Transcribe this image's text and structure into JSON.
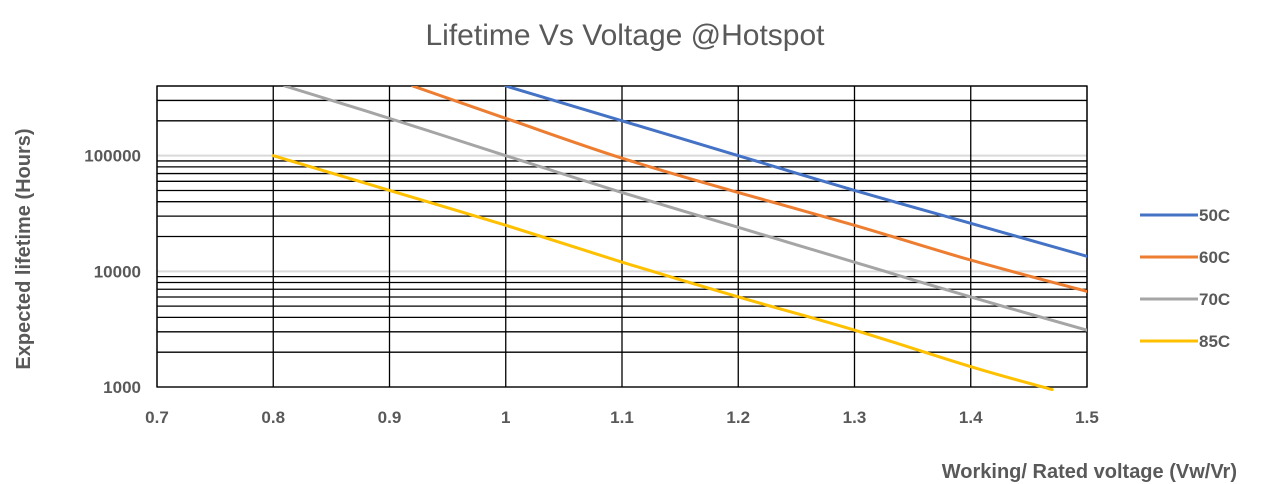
{
  "chart_data": {
    "type": "line",
    "title": "Lifetime Vs  Voltage @Hotspot",
    "xlabel": "Working/ Rated voltage (Vw/Vr)",
    "ylabel": "Expected lifetime (Hours)",
    "xlim": [
      0.7,
      1.5
    ],
    "ylim": [
      1000,
      400000
    ],
    "yscale": "log",
    "x_ticks": [
      0.7,
      0.8,
      0.9,
      1,
      1.1,
      1.2,
      1.3,
      1.4,
      1.5
    ],
    "x_tick_labels": [
      "0.7",
      "0.8",
      "0.9",
      "1",
      "1.1",
      "1.2",
      "1.3",
      "1.4",
      "1.5"
    ],
    "y_ticks": [
      1000,
      10000,
      100000
    ],
    "y_tick_labels": [
      "1000",
      "10000",
      "100000"
    ],
    "grid": true,
    "legend_position": "right",
    "series": [
      {
        "name": "50C",
        "color": "#4472C4",
        "x": [
          1.0,
          1.1,
          1.2,
          1.3,
          1.4,
          1.5
        ],
        "y": [
          400000,
          200000,
          100000,
          50000,
          26000,
          13500
        ]
      },
      {
        "name": "60C",
        "color": "#ED7D31",
        "x": [
          0.92,
          1.0,
          1.1,
          1.2,
          1.3,
          1.4,
          1.5
        ],
        "y": [
          400000,
          210000,
          95000,
          48000,
          25000,
          12500,
          6700
        ]
      },
      {
        "name": "70C",
        "color": "#A5A5A5",
        "x": [
          0.81,
          0.9,
          1.0,
          1.1,
          1.2,
          1.3,
          1.4,
          1.5
        ],
        "y": [
          400000,
          210000,
          100000,
          48000,
          24000,
          12000,
          6000,
          3100
        ]
      },
      {
        "name": "85C",
        "color": "#FFC000",
        "x": [
          0.8,
          0.9,
          1.0,
          1.1,
          1.2,
          1.3,
          1.4,
          1.47
        ],
        "y": [
          100000,
          50000,
          25000,
          12000,
          6000,
          3100,
          1500,
          950
        ]
      }
    ]
  }
}
